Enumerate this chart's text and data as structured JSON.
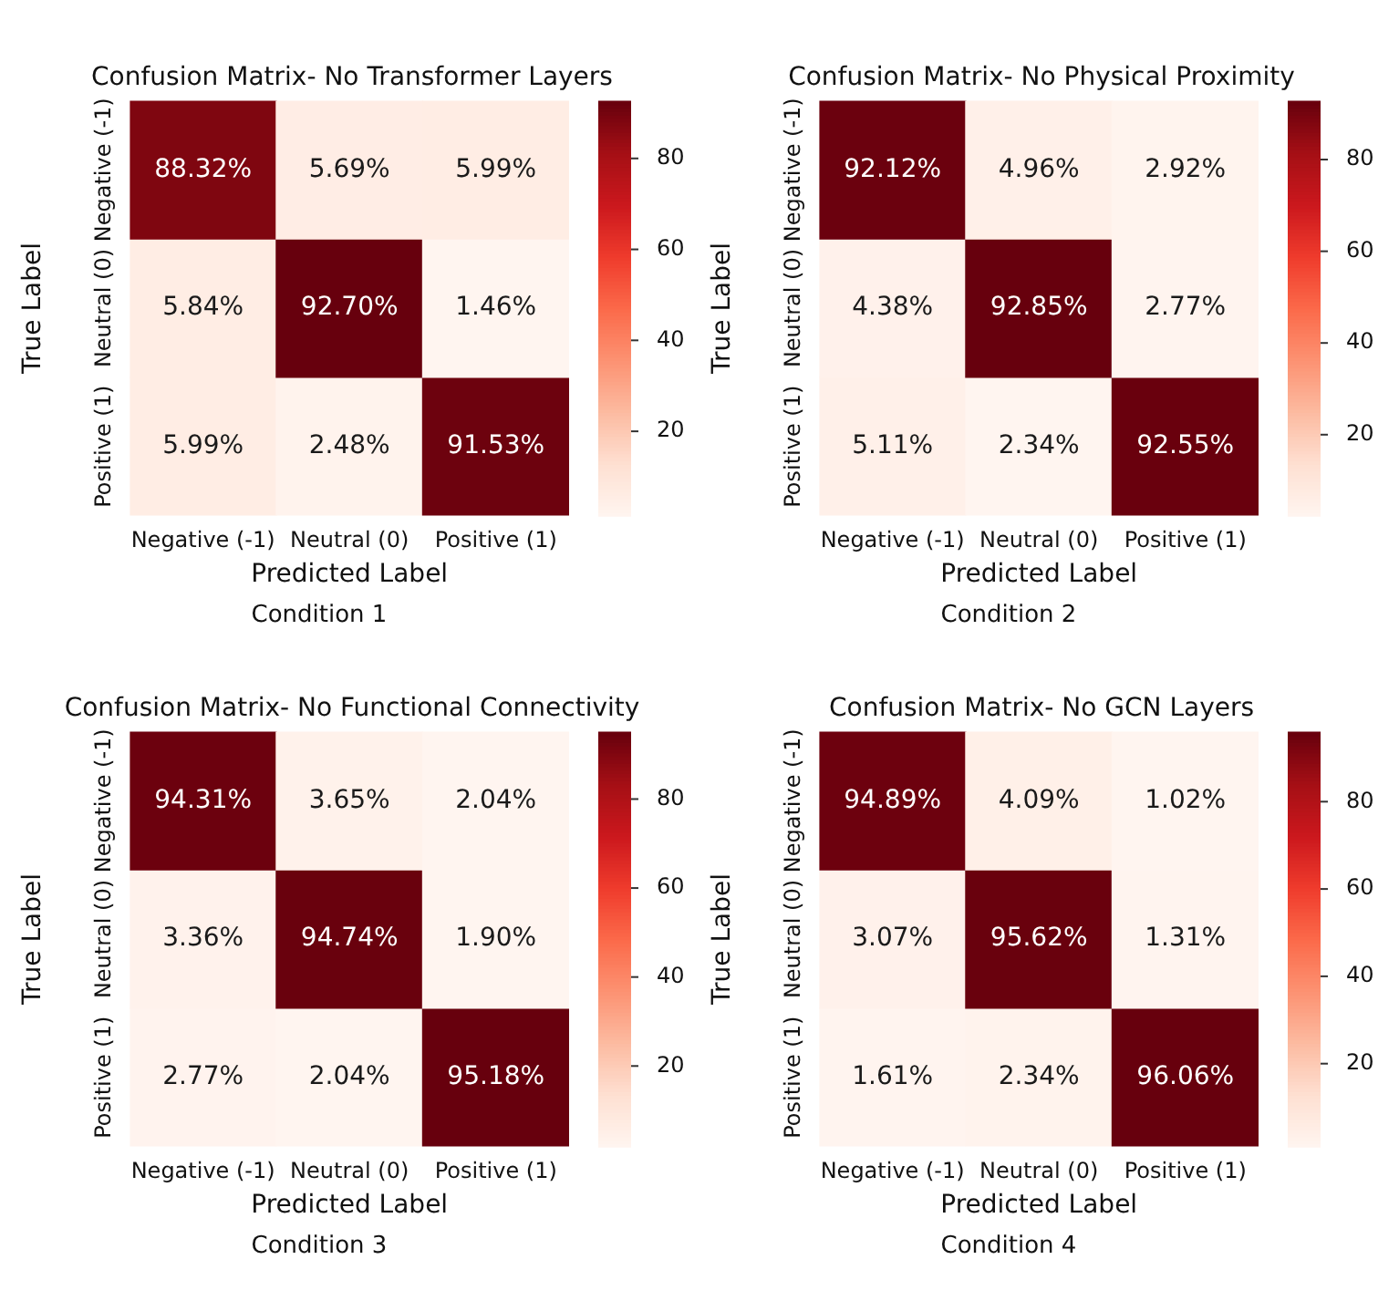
{
  "chart_data": [
    {
      "type": "heatmap",
      "title": "Confusion Matrix- No Transformer Layers",
      "xlabel": "Predicted Label",
      "ylabel": "True Label",
      "annotations": [
        "Condition 1"
      ],
      "categories": [
        "Negative (-1)",
        "Neutral (0)",
        "Positive (1)"
      ],
      "y_categories": [
        "Negative (-1)",
        "Neutral (0)",
        "Positive (1)"
      ],
      "cells": [
        [
          88.32,
          5.69,
          5.99
        ],
        [
          5.84,
          92.7,
          1.46
        ],
        [
          5.99,
          2.48,
          91.53
        ]
      ],
      "cell_labels": [
        [
          "88.32%",
          "5.69%",
          "5.99%"
        ],
        [
          "5.84%",
          "92.70%",
          "1.46%"
        ],
        [
          "5.99%",
          "2.48%",
          "91.53%"
        ]
      ],
      "clim": [
        1.46,
        92.7
      ],
      "cticks": [
        20,
        40,
        60,
        80
      ]
    },
    {
      "type": "heatmap",
      "title": "Confusion Matrix- No Physical Proximity",
      "xlabel": "Predicted Label",
      "ylabel": "True Label",
      "annotations": [
        "Condition 2"
      ],
      "categories": [
        "Negative (-1)",
        "Neutral (0)",
        "Positive (1)"
      ],
      "y_categories": [
        "Negative (-1)",
        "Neutral (0)",
        "Positive (1)"
      ],
      "cells": [
        [
          92.12,
          4.96,
          2.92
        ],
        [
          4.38,
          92.85,
          2.77
        ],
        [
          5.11,
          2.34,
          92.55
        ]
      ],
      "cell_labels": [
        [
          "92.12%",
          "4.96%",
          "2.92%"
        ],
        [
          "4.38%",
          "92.85%",
          "2.77%"
        ],
        [
          "5.11%",
          "2.34%",
          "92.55%"
        ]
      ],
      "clim": [
        2.34,
        92.85
      ],
      "cticks": [
        20,
        40,
        60,
        80
      ]
    },
    {
      "type": "heatmap",
      "title": "Confusion Matrix- No Functional Connectivity",
      "xlabel": "Predicted Label",
      "ylabel": "True Label",
      "annotations": [
        "Condition 3"
      ],
      "categories": [
        "Negative (-1)",
        "Neutral (0)",
        "Positive (1)"
      ],
      "y_categories": [
        "Negative (-1)",
        "Neutral (0)",
        "Positive (1)"
      ],
      "cells": [
        [
          94.31,
          3.65,
          2.04
        ],
        [
          3.36,
          94.74,
          1.9
        ],
        [
          2.77,
          2.04,
          95.18
        ]
      ],
      "cell_labels": [
        [
          "94.31%",
          "3.65%",
          "2.04%"
        ],
        [
          "3.36%",
          "94.74%",
          "1.90%"
        ],
        [
          "2.77%",
          "2.04%",
          "95.18%"
        ]
      ],
      "clim": [
        1.9,
        95.18
      ],
      "cticks": [
        20,
        40,
        60,
        80
      ]
    },
    {
      "type": "heatmap",
      "title": "Confusion Matrix- No GCN Layers",
      "xlabel": "Predicted Label",
      "ylabel": "True Label",
      "annotations": [
        "Condition 4"
      ],
      "categories": [
        "Negative (-1)",
        "Neutral (0)",
        "Positive (1)"
      ],
      "y_categories": [
        "Negative (-1)",
        "Neutral (0)",
        "Positive (1)"
      ],
      "cells": [
        [
          94.89,
          4.09,
          1.02
        ],
        [
          3.07,
          95.62,
          1.31
        ],
        [
          1.61,
          2.34,
          96.06
        ]
      ],
      "cell_labels": [
        [
          "94.89%",
          "4.09%",
          "1.02%"
        ],
        [
          "3.07%",
          "95.62%",
          "1.31%"
        ],
        [
          "1.61%",
          "2.34%",
          "96.06%"
        ]
      ],
      "clim": [
        1.02,
        96.06
      ],
      "cticks": [
        20,
        40,
        60,
        80
      ]
    }
  ]
}
